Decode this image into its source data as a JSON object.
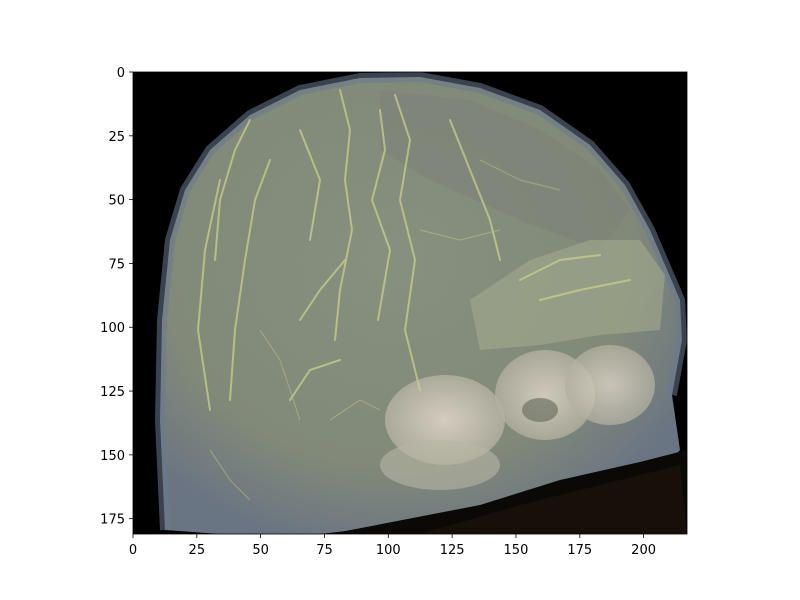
{
  "image": {
    "subject": "3D volume rendering of skull",
    "x_extent": [
      0,
      217
    ],
    "y_extent": [
      0,
      181
    ],
    "y_axis_inverted": true,
    "colors": {
      "background": "#000000",
      "skull": "#8a9385",
      "skull_edge": "#6e7a8c",
      "vessels": "#c8d28c",
      "dense_bone": "#d8cfc4"
    }
  },
  "axes": {
    "x_ticks": [
      "0",
      "25",
      "50",
      "75",
      "100",
      "125",
      "150",
      "175",
      "200"
    ],
    "x_tick_values": [
      0,
      25,
      50,
      75,
      100,
      125,
      150,
      175,
      200
    ],
    "y_ticks": [
      "0",
      "25",
      "50",
      "75",
      "100",
      "125",
      "150",
      "175"
    ],
    "y_tick_values": [
      0,
      25,
      50,
      75,
      100,
      125,
      150,
      175
    ]
  }
}
